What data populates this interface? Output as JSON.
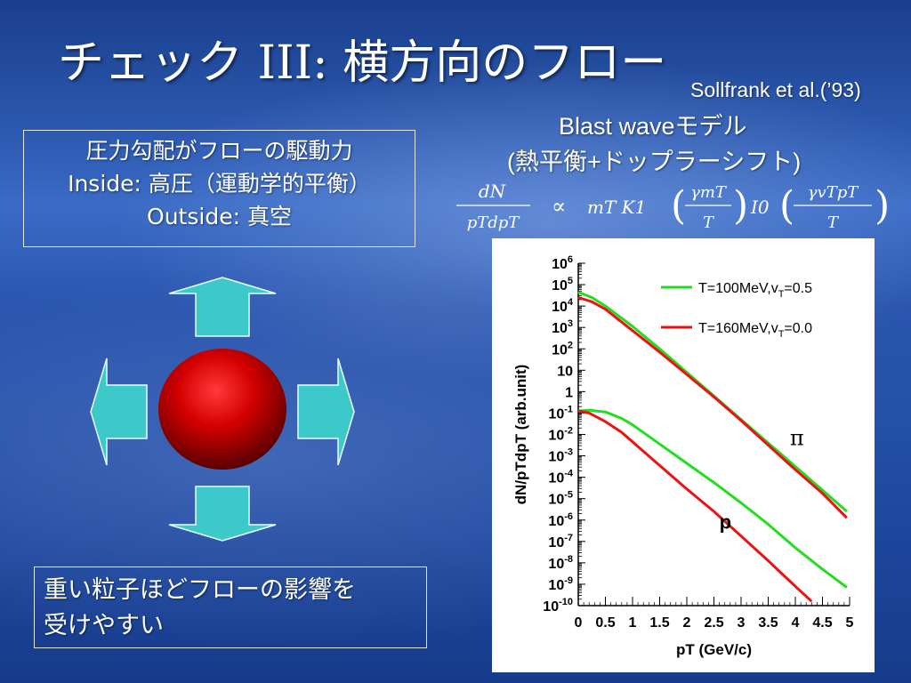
{
  "slide": {
    "title": "チェック III: 横方向のフロー",
    "citation": "Sollfrank et al.(’93)",
    "model_name": "Blast waveモデル",
    "model_note": "(熱平衡+ドップラーシフト)",
    "formula": {
      "lhs_num": "dN",
      "lhs_den": "pTdpT",
      "prop": "∝",
      "rhs": "mT K1",
      "b1_num": "γmT",
      "b1_den": "T",
      "i0": "I0",
      "b2_num": "γvTpT",
      "b2_den": "T"
    },
    "box_top": {
      "line1": "圧力勾配がフローの駆動力",
      "line2": "Inside: 高圧（運動学的平衡）",
      "line3": "Outside: 真空"
    },
    "box_bottom": {
      "line1": "重い粒子ほどフローの影響を",
      "line2": "受けやすい"
    }
  },
  "colors": {
    "arrow_fill": "#3dc9c9",
    "sphere_center": "#ff2222",
    "sphere_edge": "#6a0000",
    "series_green": "#22dd22",
    "series_red": "#ee1111"
  },
  "chart_data": {
    "type": "line",
    "title": "",
    "xlabel": "pT (GeV/c)",
    "ylabel": "dN/pTdpT (arb.unit)",
    "xlim": [
      0,
      5
    ],
    "ylim_log10": [
      -10,
      6
    ],
    "log_y": true,
    "x_ticks": [
      "0",
      "0.5",
      "1",
      "1.5",
      "2",
      "2.5",
      "3",
      "3.5",
      "4",
      "4.5",
      "5"
    ],
    "y_ticks": [
      "10^6",
      "10^5",
      "10^4",
      "10^3",
      "10^2",
      "10",
      "1",
      "10^-1",
      "10^-2",
      "10^-3",
      "10^-4",
      "10^-5",
      "10^-6",
      "10^-7",
      "10^-8",
      "10^-9",
      "10^-10"
    ],
    "legend_position": "top-right",
    "annotations": [
      {
        "text": "π",
        "x": 3.9,
        "y_log10": -2.5
      },
      {
        "text": "p",
        "x": 2.6,
        "y_log10": -6.4
      }
    ],
    "series": [
      {
        "name": "T=100MeV,vT=0.5",
        "color": "#22dd22",
        "particle": "pi",
        "x": [
          0,
          0.25,
          0.5,
          1,
          1.5,
          2,
          2.5,
          3,
          3.5,
          4,
          4.5,
          4.95
        ],
        "y_log10": [
          4.65,
          4.4,
          4.0,
          3.05,
          2.0,
          0.9,
          -0.2,
          -1.3,
          -2.4,
          -3.5,
          -4.6,
          -5.6
        ]
      },
      {
        "name": "T=160MeV,vT=0.0",
        "color": "#ee1111",
        "particle": "pi",
        "x": [
          0,
          0.25,
          0.5,
          1,
          1.5,
          2,
          2.5,
          3,
          3.5,
          4,
          4.5,
          4.95
        ],
        "y_log10": [
          4.4,
          4.2,
          3.85,
          2.85,
          1.85,
          0.8,
          -0.25,
          -1.35,
          -2.5,
          -3.65,
          -4.75,
          -5.9
        ]
      },
      {
        "name": "T=100MeV,vT=0.5",
        "color": "#22dd22",
        "particle": "p",
        "x": [
          0,
          0.2,
          0.5,
          0.8,
          1,
          1.5,
          2,
          2.5,
          3,
          3.5,
          4,
          4.5,
          4.95
        ],
        "y_log10": [
          -0.9,
          -0.87,
          -0.95,
          -1.25,
          -1.55,
          -2.45,
          -3.35,
          -4.25,
          -5.2,
          -6.2,
          -7.3,
          -8.3,
          -9.15
        ]
      },
      {
        "name": "T=160MeV,vT=0.0",
        "color": "#ee1111",
        "particle": "p",
        "x": [
          0,
          0.2,
          0.5,
          0.8,
          1,
          1.5,
          2,
          2.5,
          3,
          3.5,
          4,
          4.3
        ],
        "y_log10": [
          -0.9,
          -1.0,
          -1.4,
          -1.9,
          -2.35,
          -3.45,
          -4.55,
          -5.6,
          -6.75,
          -7.9,
          -9.1,
          -9.8
        ]
      }
    ]
  }
}
